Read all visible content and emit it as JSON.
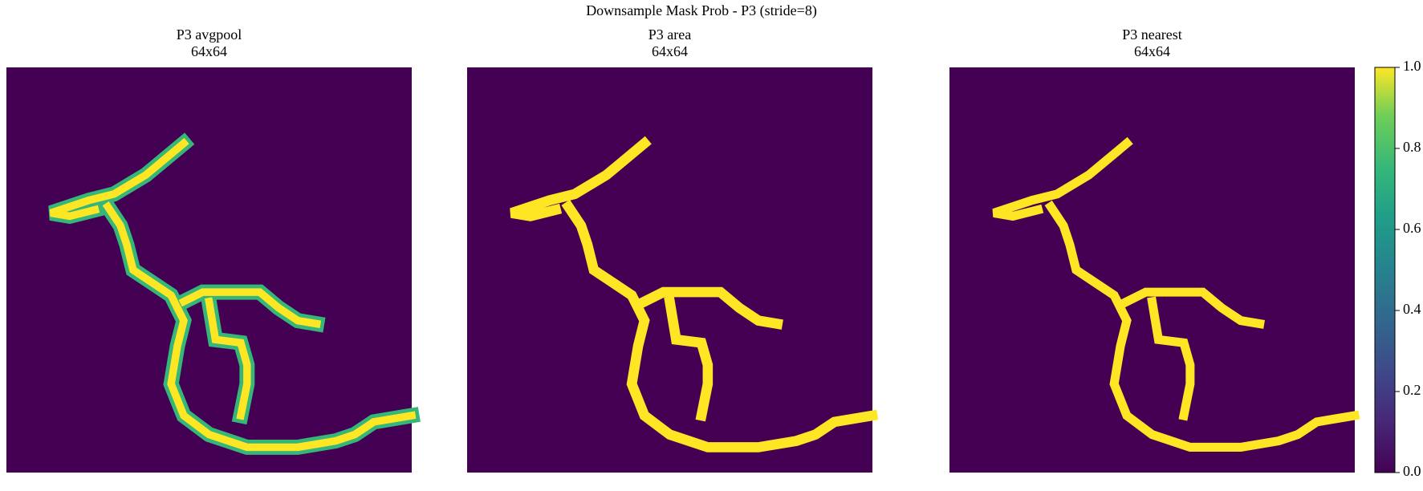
{
  "chart_data": {
    "type": "heatmap",
    "title": "Downsample Mask Prob - P3 (stride=8)",
    "panels": [
      {
        "title": "P3 avgpool",
        "subtitle": "64x64"
      },
      {
        "title": "P3 area",
        "subtitle": "64x64"
      },
      {
        "title": "P3 nearest",
        "subtitle": "64x64"
      }
    ],
    "clim": [
      0,
      1
    ],
    "cticks": [
      {
        "value": 0,
        "label": "0.0"
      },
      {
        "value": 0.2,
        "label": "0.2"
      },
      {
        "value": 0.4,
        "label": "0.4"
      },
      {
        "value": 0.6,
        "label": "0.6"
      },
      {
        "value": 0.8,
        "label": "0.8"
      },
      {
        "value": 1,
        "label": "1.0"
      }
    ]
  }
}
